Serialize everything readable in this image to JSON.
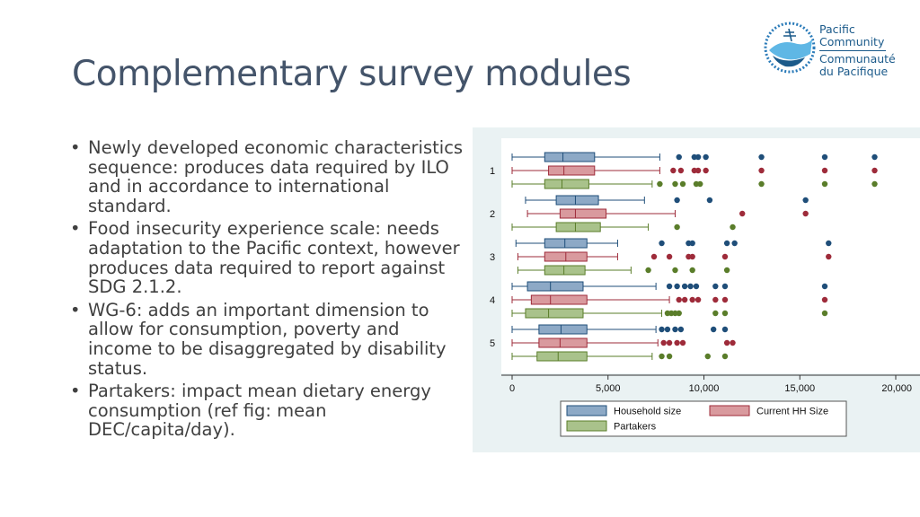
{
  "page": {
    "title": "Complementary survey modules"
  },
  "logo": {
    "line1": "Pacific",
    "line2": "Community",
    "line3": "Communauté",
    "line4": "du Pacifique"
  },
  "bullets": [
    {
      "text": "Newly developed economic characteristics sequence: produces data required by ILO and in accordance to international standard."
    },
    {
      "text": "Food insecurity experience scale: needs adaptation to the Pacific context, however produces data required to report against SDG 2.1.2."
    },
    {
      "text": "WG-6: adds an important dimension to allow for consumption, poverty and income to be disaggregated by disability status."
    },
    {
      "text": "Partakers: impact mean dietary energy consumption (ref fig: mean DEC/capita/day)."
    }
  ],
  "chart_data": {
    "type": "boxplot",
    "orientation": "horizontal",
    "categories": [
      "1",
      "2",
      "3",
      "4",
      "5"
    ],
    "xlim": [
      0,
      20000
    ],
    "xticks": [
      0,
      5000,
      10000,
      15000,
      20000
    ],
    "xtick_labels": [
      "0",
      "5,000",
      "10,000",
      "15,000",
      "20,000"
    ],
    "legend_position": "bottom",
    "series": [
      {
        "name": "Household size",
        "color": "#8da9c6",
        "outlier_color": "#1f4e79",
        "boxes": [
          {
            "category": "1",
            "min": 0,
            "q1": 1700,
            "median": 2650,
            "q3": 4300,
            "max": 7700,
            "outliers": [
              8700,
              9500,
              9700,
              10100,
              13000,
              16300,
              18900
            ]
          },
          {
            "category": "2",
            "min": 700,
            "q1": 2300,
            "median": 3300,
            "q3": 4500,
            "max": 6900,
            "outliers": [
              8600,
              10300,
              15300
            ]
          },
          {
            "category": "3",
            "min": 200,
            "q1": 1700,
            "median": 2750,
            "q3": 3900,
            "max": 5500,
            "outliers": [
              7800,
              9200,
              9400,
              11200,
              11600,
              16500
            ]
          },
          {
            "category": "4",
            "min": 0,
            "q1": 800,
            "median": 2000,
            "q3": 3700,
            "max": 7500,
            "outliers": [
              8200,
              8600,
              9000,
              9300,
              9600,
              10600,
              11100,
              16300
            ]
          },
          {
            "category": "5",
            "min": 0,
            "q1": 1400,
            "median": 2550,
            "q3": 3900,
            "max": 7500,
            "outliers": [
              7800,
              8100,
              8500,
              8800,
              10500,
              11100
            ]
          }
        ]
      },
      {
        "name": "Current HH Size",
        "color": "#d99a9e",
        "outlier_color": "#9e2b3a",
        "boxes": [
          {
            "category": "1",
            "min": 0,
            "q1": 1900,
            "median": 2700,
            "q3": 4300,
            "max": 7700,
            "outliers": [
              8400,
              8800,
              9500,
              9700,
              10100,
              13000,
              16300,
              18900
            ]
          },
          {
            "category": "2",
            "min": 800,
            "q1": 2500,
            "median": 3300,
            "q3": 4900,
            "max": 8500,
            "outliers": [
              12000,
              15300
            ]
          },
          {
            "category": "3",
            "min": 300,
            "q1": 1700,
            "median": 2800,
            "q3": 3900,
            "max": 5500,
            "outliers": [
              7400,
              8200,
              9200,
              9400,
              11100,
              16500
            ]
          },
          {
            "category": "4",
            "min": 0,
            "q1": 1000,
            "median": 2000,
            "q3": 3900,
            "max": 8200,
            "outliers": [
              8700,
              9000,
              9400,
              9700,
              10600,
              11100,
              16300
            ]
          },
          {
            "category": "5",
            "min": 0,
            "q1": 1400,
            "median": 2500,
            "q3": 3900,
            "max": 7600,
            "outliers": [
              7900,
              8200,
              8600,
              8900,
              11200,
              11500
            ]
          }
        ]
      },
      {
        "name": "Partakers",
        "color": "#a9c28b",
        "outlier_color": "#5a7d2a",
        "boxes": [
          {
            "category": "1",
            "min": 0,
            "q1": 1700,
            "median": 2600,
            "q3": 4000,
            "max": 7300,
            "outliers": [
              7700,
              8500,
              8900,
              9600,
              9800,
              13000,
              16300,
              18900
            ]
          },
          {
            "category": "2",
            "min": 0,
            "q1": 2300,
            "median": 3300,
            "q3": 4600,
            "max": 7100,
            "outliers": [
              8600,
              11500
            ]
          },
          {
            "category": "3",
            "min": 300,
            "q1": 1700,
            "median": 2700,
            "q3": 3800,
            "max": 6200,
            "outliers": [
              7100,
              8500,
              9400,
              11200
            ]
          },
          {
            "category": "4",
            "min": 0,
            "q1": 700,
            "median": 1900,
            "q3": 3700,
            "max": 7800,
            "outliers": [
              8100,
              8300,
              8500,
              8700,
              10600,
              11100,
              16300
            ]
          },
          {
            "category": "5",
            "min": 0,
            "q1": 1300,
            "median": 2400,
            "q3": 3900,
            "max": 7300,
            "outliers": [
              7800,
              8200,
              10200,
              11100
            ]
          }
        ]
      }
    ]
  }
}
